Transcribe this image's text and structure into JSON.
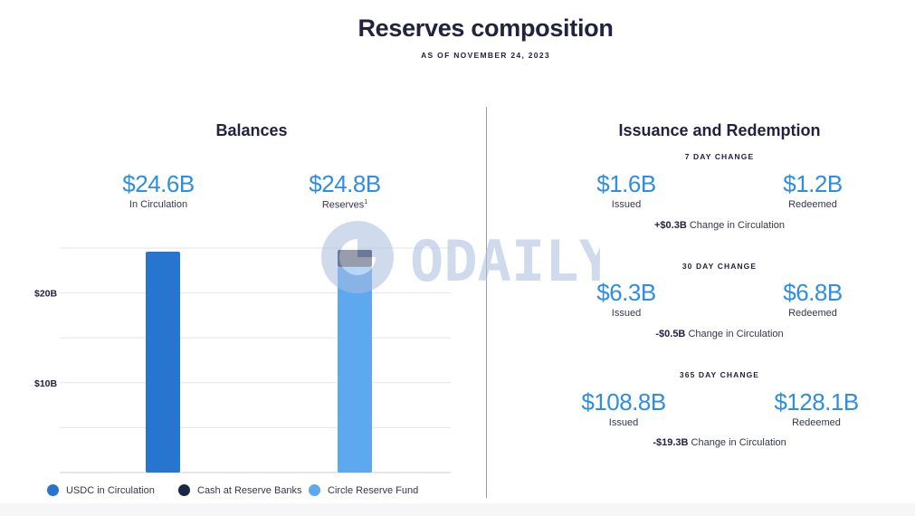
{
  "header": {
    "title": "Reserves composition",
    "subtitle": "AS OF NOVEMBER 24, 2023"
  },
  "balances": {
    "title": "Balances",
    "circulation_value": "$24.6B",
    "circulation_label": "In Circulation",
    "reserves_value": "$24.8B",
    "reserves_label": "Reserves",
    "reserves_footnote": "1"
  },
  "chart_data": {
    "type": "bar",
    "stacked": true,
    "categories": [
      "In Circulation",
      "Reserves"
    ],
    "series": [
      {
        "name": "USDC in Circulation",
        "values": [
          24.6,
          0
        ],
        "color": "#2875cf"
      },
      {
        "name": "Circle Reserve Fund",
        "values": [
          0,
          22.9
        ],
        "color": "#5ea8ef"
      },
      {
        "name": "Cash at Reserve Banks",
        "values": [
          0,
          1.9
        ],
        "color": "#1a2747"
      }
    ],
    "y_ticks": [
      {
        "value": 10,
        "label": "$10B"
      },
      {
        "value": 20,
        "label": "$20B"
      }
    ],
    "ylim": [
      0,
      25
    ],
    "grid": true,
    "legend_position": "bottom"
  },
  "legend": {
    "usdc": "USDC in Circulation",
    "cash": "Cash at Reserve Banks",
    "fund": "Circle Reserve Fund"
  },
  "issuance": {
    "title": "Issuance and Redemption",
    "issued_label": "Issued",
    "redeemed_label": "Redeemed",
    "change_suffix": "Change in Circulation",
    "periods": [
      {
        "title": "7 DAY CHANGE",
        "issued": "$1.6B",
        "redeemed": "$1.2B",
        "change": "+$0.3B"
      },
      {
        "title": "30 DAY CHANGE",
        "issued": "$6.3B",
        "redeemed": "$6.8B",
        "change": "-$0.5B"
      },
      {
        "title": "365 DAY CHANGE",
        "issued": "$108.8B",
        "redeemed": "$128.1B",
        "change": "-$19.3B"
      }
    ]
  },
  "watermark": {
    "text": "ODAILY",
    "color": "#a9bde0"
  }
}
